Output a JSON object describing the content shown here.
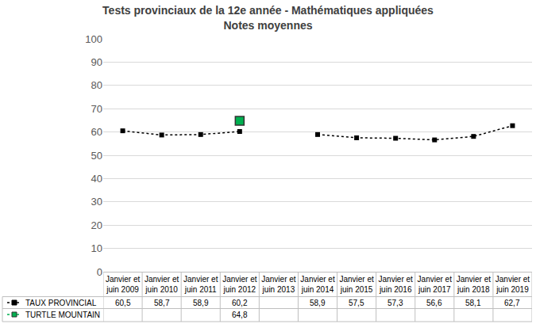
{
  "chart_data": {
    "type": "line",
    "title": "Tests provinciaux de la 12e année - Mathématiques appliquées",
    "subtitle": "Notes moyennes",
    "categories": [
      "Janvier et juin 2009",
      "Janvier et juin 2010",
      "Janvier et juin 2011",
      "Janvier et juin 2012",
      "Janvier et juin 2013",
      "Janvier et juin 2014",
      "Janvier et juin 2015",
      "Janvier et juin 2016",
      "Janvier et juin 2017",
      "Janvier et juin 2018",
      "Janvier et juin 2019"
    ],
    "series": [
      {
        "name": "TAUX PROVINCIAL",
        "color": "#000000",
        "marker": "square",
        "line_style": "dotted",
        "values": [
          60.5,
          58.7,
          58.9,
          60.2,
          null,
          58.9,
          57.5,
          57.3,
          56.6,
          58.1,
          62.7
        ],
        "value_labels": [
          "60,5",
          "58,7",
          "58,9",
          "60,2",
          null,
          "58,9",
          "57,5",
          "57,3",
          "56,6",
          "58,1",
          "62,7"
        ]
      },
      {
        "name": "TURTLE MOUNTAIN",
        "color": "#00b050",
        "marker": "square",
        "line_style": "dotted",
        "values": [
          null,
          null,
          null,
          64.8,
          null,
          null,
          null,
          null,
          null,
          null,
          null
        ],
        "value_labels": [
          null,
          null,
          null,
          "64,8",
          null,
          null,
          null,
          null,
          null,
          null,
          null
        ]
      }
    ],
    "ylim": [
      0,
      100
    ],
    "yticks": [
      0,
      10,
      20,
      30,
      40,
      50,
      60,
      70,
      80,
      90,
      100
    ],
    "grid": true,
    "data_labels": true
  }
}
